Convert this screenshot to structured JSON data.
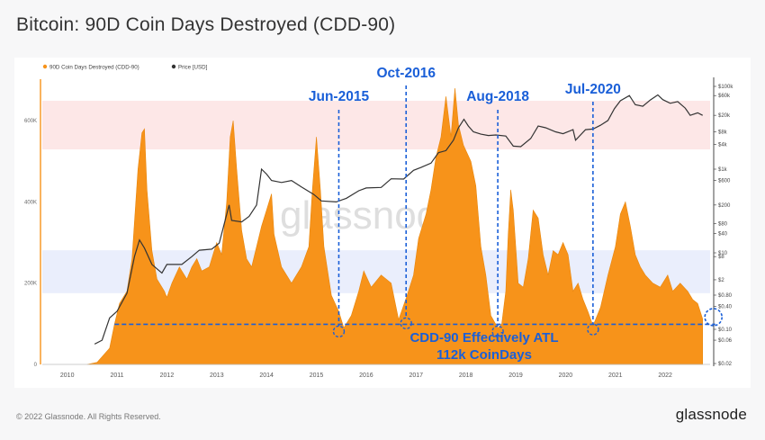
{
  "page": {
    "title": "Bitcoin: 90D Coin Days Destroyed (CDD-90)",
    "copyright": "© 2022 Glassnode. All Rights Reserved.",
    "brand": "glassnode"
  },
  "colors": {
    "cdd": "#f7931a",
    "price": "#333333",
    "annotation": "#1a5fd8",
    "upper_band": "#fde3e3",
    "lower_band": "#e6ebfb"
  },
  "chart_data": {
    "type": "area",
    "watermark": "glassnode",
    "legend_position": "top-left",
    "legend": [
      {
        "label": "90D Coin Days Destroyed (CDD-90)",
        "color": "#f7931a"
      },
      {
        "label": "Price [USD]",
        "color": "#333333"
      }
    ],
    "x_ticks": [
      "2010",
      "2011",
      "2012",
      "2013",
      "2014",
      "2015",
      "2016",
      "2017",
      "2018",
      "2019",
      "2020",
      "2021",
      "2022"
    ],
    "xlim": [
      2009.5,
      2022.9
    ],
    "y_left": {
      "ticks": [
        "0",
        "200K",
        "400K",
        "600K"
      ],
      "range": [
        0,
        700000
      ]
    },
    "y_right": {
      "scale": "log",
      "ticks": [
        "$0.02",
        "$0.06",
        "$0.10",
        "$0.40",
        "$0.80",
        "$2",
        "$8",
        "$10",
        "$40",
        "$80",
        "$200",
        "$600",
        "$1k",
        "$4k",
        "$8k",
        "$20k",
        "$60k",
        "$100k"
      ]
    },
    "shaded_bands": [
      {
        "name": "upper",
        "price_range": [
          3000,
          45000
        ]
      },
      {
        "name": "lower",
        "price_range": [
          0.9,
          12
        ]
      }
    ],
    "series": [
      {
        "name": "90D Coin Days Destroyed (CDD-90)",
        "axis": "left",
        "points": [
          [
            2010.4,
            0
          ],
          [
            2010.6,
            5000
          ],
          [
            2010.85,
            40000
          ],
          [
            2010.95,
            100000
          ],
          [
            2011.05,
            150000
          ],
          [
            2011.2,
            180000
          ],
          [
            2011.3,
            260000
          ],
          [
            2011.42,
            480000
          ],
          [
            2011.5,
            570000
          ],
          [
            2011.55,
            580000
          ],
          [
            2011.6,
            430000
          ],
          [
            2011.7,
            280000
          ],
          [
            2011.8,
            210000
          ],
          [
            2011.95,
            180000
          ],
          [
            2012.0,
            165000
          ],
          [
            2012.1,
            200000
          ],
          [
            2012.25,
            240000
          ],
          [
            2012.4,
            210000
          ],
          [
            2012.5,
            240000
          ],
          [
            2012.6,
            260000
          ],
          [
            2012.7,
            230000
          ],
          [
            2012.85,
            240000
          ],
          [
            2012.95,
            280000
          ],
          [
            2013.0,
            300000
          ],
          [
            2013.1,
            270000
          ],
          [
            2013.2,
            400000
          ],
          [
            2013.27,
            560000
          ],
          [
            2013.33,
            600000
          ],
          [
            2013.4,
            480000
          ],
          [
            2013.5,
            330000
          ],
          [
            2013.6,
            260000
          ],
          [
            2013.7,
            240000
          ],
          [
            2013.8,
            290000
          ],
          [
            2013.9,
            340000
          ],
          [
            2014.0,
            380000
          ],
          [
            2014.1,
            420000
          ],
          [
            2014.15,
            320000
          ],
          [
            2014.3,
            240000
          ],
          [
            2014.5,
            200000
          ],
          [
            2014.7,
            240000
          ],
          [
            2014.85,
            290000
          ],
          [
            2014.92,
            430000
          ],
          [
            2015.0,
            560000
          ],
          [
            2015.08,
            430000
          ],
          [
            2015.15,
            290000
          ],
          [
            2015.3,
            170000
          ],
          [
            2015.45,
            130000
          ],
          [
            2015.55,
            90000
          ],
          [
            2015.7,
            120000
          ],
          [
            2015.85,
            180000
          ],
          [
            2015.95,
            230000
          ],
          [
            2016.1,
            190000
          ],
          [
            2016.3,
            220000
          ],
          [
            2016.5,
            200000
          ],
          [
            2016.65,
            110000
          ],
          [
            2016.82,
            170000
          ],
          [
            2016.95,
            220000
          ],
          [
            2017.05,
            310000
          ],
          [
            2017.2,
            370000
          ],
          [
            2017.3,
            430000
          ],
          [
            2017.4,
            510000
          ],
          [
            2017.5,
            560000
          ],
          [
            2017.6,
            660000
          ],
          [
            2017.7,
            560000
          ],
          [
            2017.78,
            680000
          ],
          [
            2017.85,
            590000
          ],
          [
            2017.95,
            540000
          ],
          [
            2018.1,
            500000
          ],
          [
            2018.2,
            440000
          ],
          [
            2018.3,
            290000
          ],
          [
            2018.4,
            220000
          ],
          [
            2018.5,
            120000
          ],
          [
            2018.64,
            90000
          ],
          [
            2018.72,
            100000
          ],
          [
            2018.8,
            180000
          ],
          [
            2018.85,
            320000
          ],
          [
            2018.9,
            430000
          ],
          [
            2018.95,
            380000
          ],
          [
            2019.05,
            200000
          ],
          [
            2019.15,
            190000
          ],
          [
            2019.25,
            260000
          ],
          [
            2019.35,
            380000
          ],
          [
            2019.45,
            360000
          ],
          [
            2019.55,
            270000
          ],
          [
            2019.65,
            220000
          ],
          [
            2019.75,
            280000
          ],
          [
            2019.85,
            270000
          ],
          [
            2019.95,
            300000
          ],
          [
            2020.05,
            270000
          ],
          [
            2020.15,
            180000
          ],
          [
            2020.25,
            200000
          ],
          [
            2020.35,
            160000
          ],
          [
            2020.45,
            130000
          ],
          [
            2020.55,
            95000
          ],
          [
            2020.7,
            140000
          ],
          [
            2020.85,
            220000
          ],
          [
            2021.0,
            290000
          ],
          [
            2021.1,
            370000
          ],
          [
            2021.2,
            400000
          ],
          [
            2021.3,
            340000
          ],
          [
            2021.4,
            270000
          ],
          [
            2021.5,
            240000
          ],
          [
            2021.6,
            220000
          ],
          [
            2021.75,
            200000
          ],
          [
            2021.9,
            190000
          ],
          [
            2022.05,
            220000
          ],
          [
            2022.15,
            180000
          ],
          [
            2022.3,
            200000
          ],
          [
            2022.45,
            180000
          ],
          [
            2022.55,
            160000
          ],
          [
            2022.65,
            150000
          ],
          [
            2022.75,
            112000
          ]
        ]
      },
      {
        "name": "Price [USD]",
        "axis": "right",
        "points": [
          [
            2010.55,
            0.05
          ],
          [
            2010.7,
            0.06
          ],
          [
            2010.85,
            0.2
          ],
          [
            2011.0,
            0.3
          ],
          [
            2011.2,
            0.9
          ],
          [
            2011.35,
            8
          ],
          [
            2011.45,
            25
          ],
          [
            2011.55,
            14
          ],
          [
            2011.7,
            5
          ],
          [
            2011.9,
            3
          ],
          [
            2012.0,
            5
          ],
          [
            2012.3,
            5
          ],
          [
            2012.5,
            8
          ],
          [
            2012.65,
            12
          ],
          [
            2012.9,
            13
          ],
          [
            2013.05,
            20
          ],
          [
            2013.25,
            200
          ],
          [
            2013.3,
            100
          ],
          [
            2013.5,
            90
          ],
          [
            2013.65,
            120
          ],
          [
            2013.8,
            200
          ],
          [
            2013.9,
            1000
          ],
          [
            2014.0,
            800
          ],
          [
            2014.1,
            600
          ],
          [
            2014.3,
            550
          ],
          [
            2014.5,
            600
          ],
          [
            2014.7,
            450
          ],
          [
            2014.95,
            320
          ],
          [
            2015.1,
            240
          ],
          [
            2015.4,
            230
          ],
          [
            2015.6,
            270
          ],
          [
            2015.85,
            380
          ],
          [
            2016.0,
            430
          ],
          [
            2016.3,
            440
          ],
          [
            2016.5,
            650
          ],
          [
            2016.75,
            640
          ],
          [
            2016.95,
            950
          ],
          [
            2017.1,
            1100
          ],
          [
            2017.3,
            1400
          ],
          [
            2017.45,
            2500
          ],
          [
            2017.6,
            2800
          ],
          [
            2017.75,
            5000
          ],
          [
            2017.85,
            10000
          ],
          [
            2017.96,
            16000
          ],
          [
            2018.05,
            11000
          ],
          [
            2018.15,
            8000
          ],
          [
            2018.3,
            7000
          ],
          [
            2018.45,
            6500
          ],
          [
            2018.6,
            6700
          ],
          [
            2018.8,
            6300
          ],
          [
            2018.95,
            3600
          ],
          [
            2019.1,
            3500
          ],
          [
            2019.3,
            5500
          ],
          [
            2019.45,
            11000
          ],
          [
            2019.6,
            10000
          ],
          [
            2019.8,
            8000
          ],
          [
            2019.95,
            7200
          ],
          [
            2020.15,
            9000
          ],
          [
            2020.2,
            5000
          ],
          [
            2020.4,
            9000
          ],
          [
            2020.55,
            9300
          ],
          [
            2020.7,
            11500
          ],
          [
            2020.85,
            15000
          ],
          [
            2020.98,
            29000
          ],
          [
            2021.1,
            45000
          ],
          [
            2021.28,
            60000
          ],
          [
            2021.4,
            36000
          ],
          [
            2021.55,
            33000
          ],
          [
            2021.7,
            47000
          ],
          [
            2021.85,
            62000
          ],
          [
            2021.95,
            48000
          ],
          [
            2022.1,
            39000
          ],
          [
            2022.25,
            43000
          ],
          [
            2022.4,
            30000
          ],
          [
            2022.5,
            20000
          ],
          [
            2022.65,
            23000
          ],
          [
            2022.75,
            20000
          ]
        ]
      }
    ],
    "annotations": {
      "bottoms": [
        {
          "label": "Jun-2015",
          "date": 2015.45,
          "value": 90000
        },
        {
          "label": "Oct-2016",
          "date": 2016.8,
          "value": 110000
        },
        {
          "label": "Aug-2018",
          "date": 2018.64,
          "value": 90000
        },
        {
          "label": "Jul-2020",
          "date": 2020.55,
          "value": 95000
        }
      ],
      "current": {
        "date": 2022.75,
        "value": 112000
      },
      "atl_line": {
        "value": 112000,
        "from": 2010.95
      },
      "callout": [
        "CDD-90 Effectively ATL",
        "112k CoinDays"
      ]
    }
  }
}
